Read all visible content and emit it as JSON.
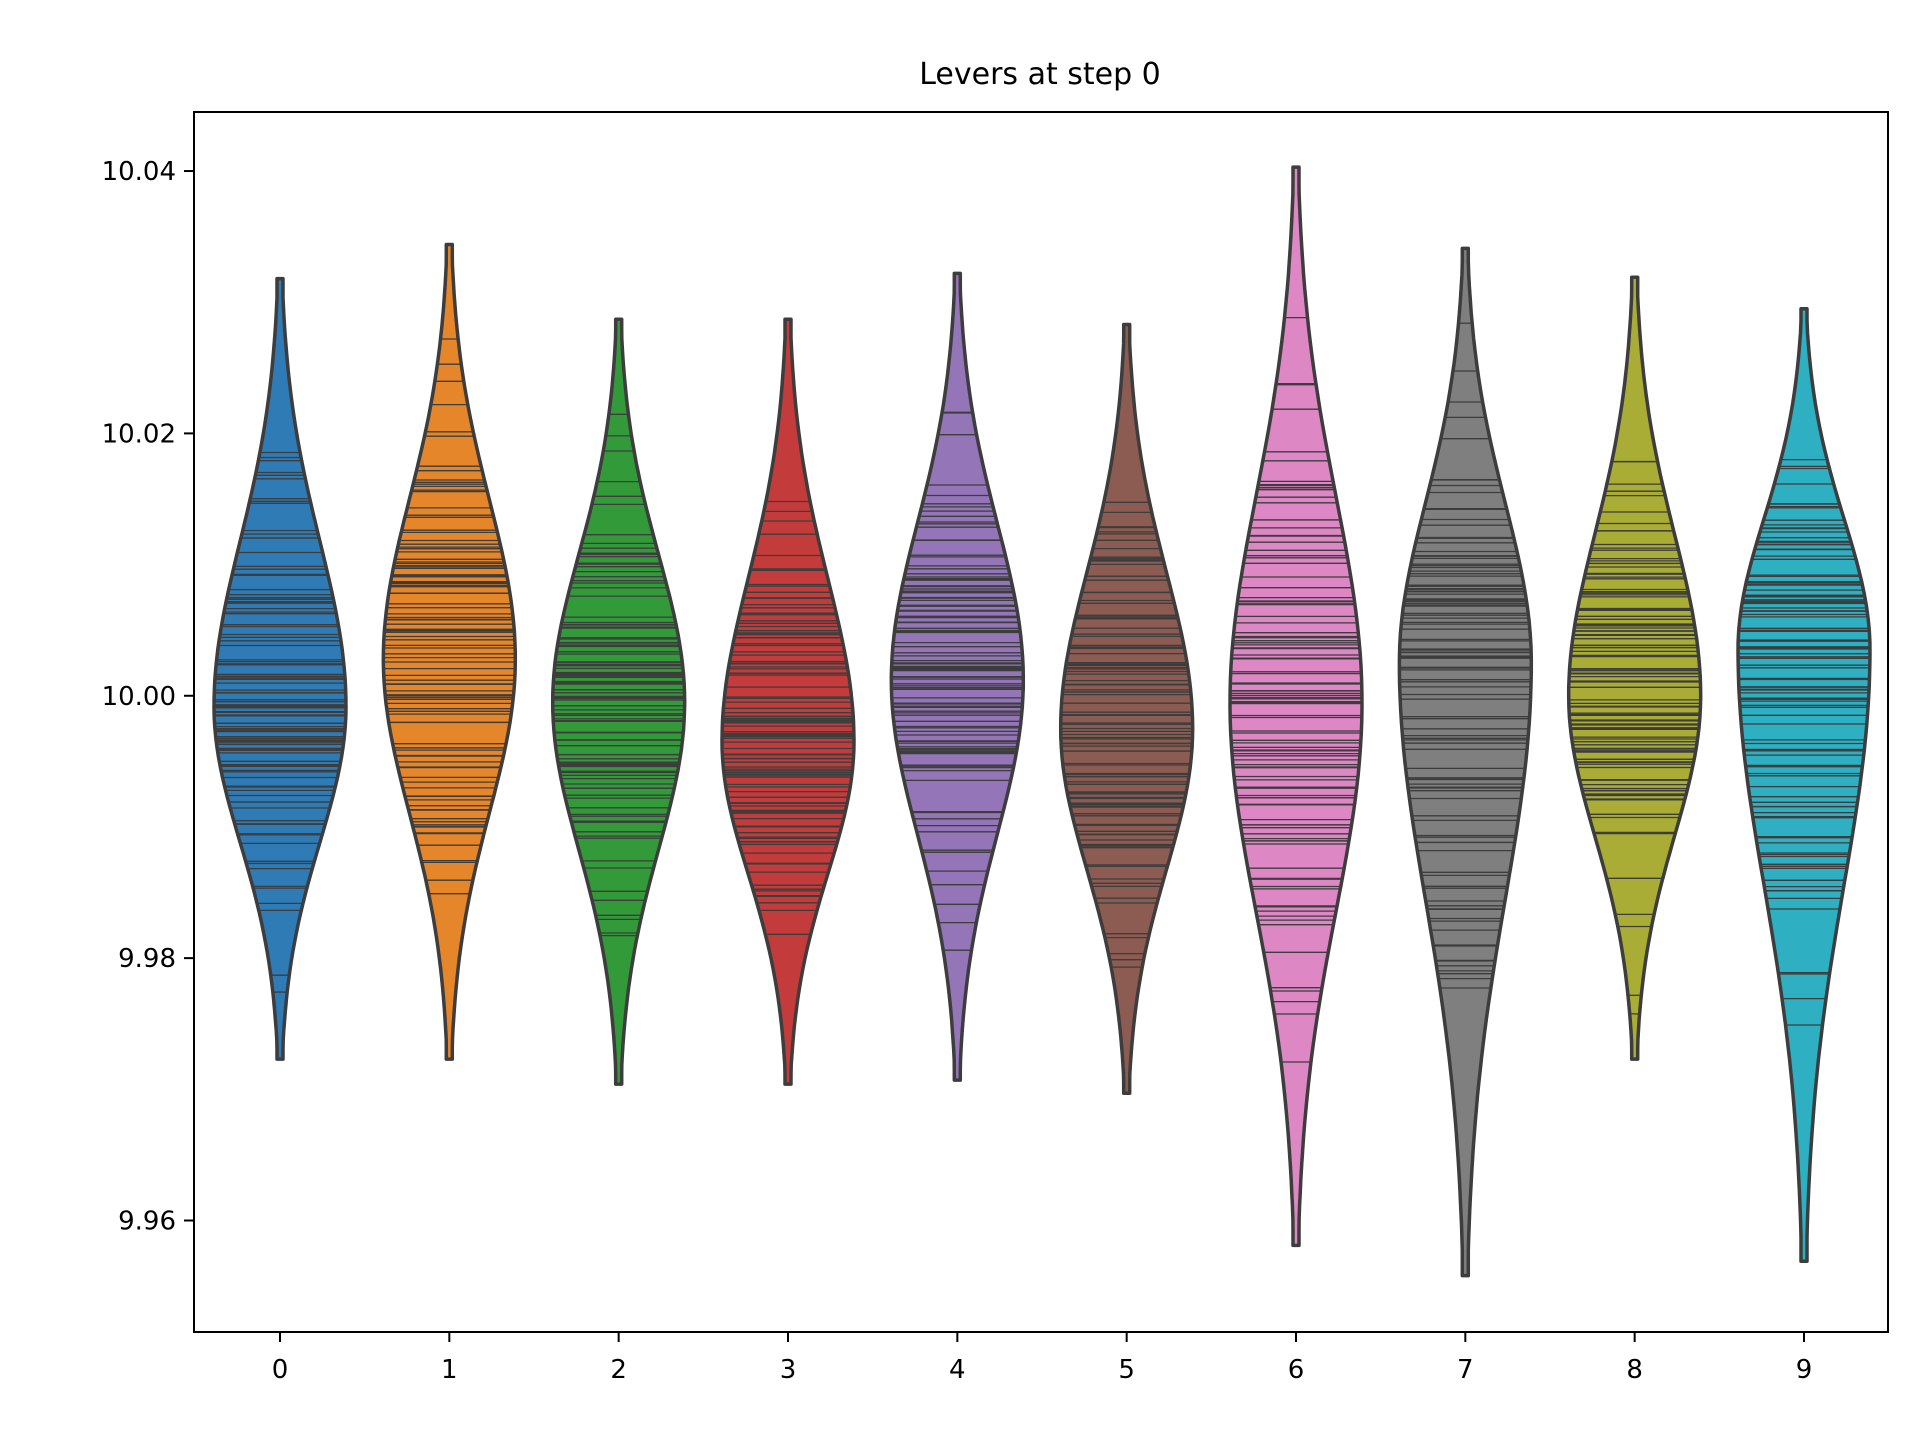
{
  "chart_data": {
    "type": "violin",
    "title": "Levers at step 0",
    "xlabel": "",
    "ylabel": "",
    "categories": [
      "0",
      "1",
      "2",
      "3",
      "4",
      "5",
      "6",
      "7",
      "8",
      "9"
    ],
    "ylim": [
      9.9515,
      10.0445
    ],
    "yticks": [
      9.96,
      9.98,
      10.0,
      10.02,
      10.04
    ],
    "ytick_labels": [
      "9.96",
      "9.98",
      "10.00",
      "10.02",
      "10.04"
    ],
    "inner": "stick",
    "grid": false,
    "legend": "none",
    "series": [
      {
        "category": "0",
        "color": "#2f7bb5",
        "min": 9.9723,
        "max": 10.0318,
        "median": 9.9992
      },
      {
        "category": "1",
        "color": "#e6862a",
        "min": 9.9723,
        "max": 10.0344,
        "median": 10.0028
      },
      {
        "category": "2",
        "color": "#339a3a",
        "min": 9.9704,
        "max": 10.0287,
        "median": 9.9995
      },
      {
        "category": "3",
        "color": "#c43b3b",
        "min": 9.9704,
        "max": 10.0287,
        "median": 9.9965
      },
      {
        "category": "4",
        "color": "#9375b8",
        "min": 9.9707,
        "max": 10.0322,
        "median": 10.0012
      },
      {
        "category": "5",
        "color": "#8c5c52",
        "min": 9.9697,
        "max": 10.0283,
        "median": 9.9975
      },
      {
        "category": "6",
        "color": "#dd87c4",
        "min": 9.9581,
        "max": 10.0403,
        "median": 9.9995
      },
      {
        "category": "7",
        "color": "#7f7f7f",
        "min": 9.9558,
        "max": 10.0341,
        "median": 10.0025
      },
      {
        "category": "8",
        "color": "#a9ad36",
        "min": 9.9723,
        "max": 10.0319,
        "median": 10.0
      },
      {
        "category": "9",
        "color": "#2eb0c2",
        "min": 9.9569,
        "max": 10.0295,
        "median": 10.0035
      }
    ]
  }
}
